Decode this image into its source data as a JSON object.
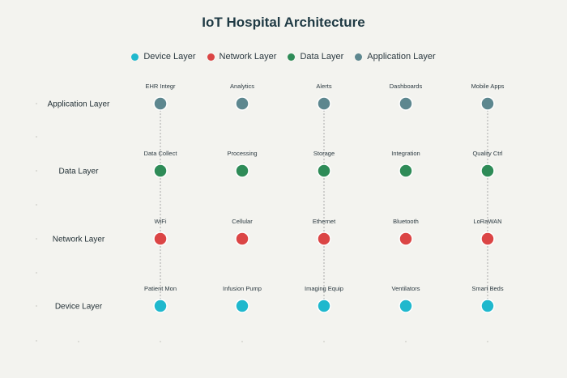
{
  "title": "IoT Hospital Architecture",
  "colors": {
    "device": "#1fb8cd",
    "network": "#db4545",
    "data": "#2e8b57",
    "application": "#5d878f",
    "connector": "#a8a8a8"
  },
  "legend": [
    {
      "label": "Device Layer",
      "color_key": "device"
    },
    {
      "label": "Network Layer",
      "color_key": "network"
    },
    {
      "label": "Data Layer",
      "color_key": "data"
    },
    {
      "label": "Application Layer",
      "color_key": "application"
    }
  ],
  "layers": [
    {
      "name": "Application Layer",
      "color_key": "application",
      "nodes": [
        "EHR Integr",
        "Analytics",
        "Alerts",
        "Dashboards",
        "Mobile Apps"
      ]
    },
    {
      "name": "Data Layer",
      "color_key": "data",
      "nodes": [
        "Data Collect",
        "Processing",
        "Storage",
        "Integration",
        "Quality Ctrl"
      ]
    },
    {
      "name": "Network Layer",
      "color_key": "network",
      "nodes": [
        "WiFi",
        "Cellular",
        "Ethernet",
        "Bluetooth",
        "LoRaWAN"
      ]
    },
    {
      "name": "Device Layer",
      "color_key": "device",
      "nodes": [
        "Patient Mon",
        "Infusion Pump",
        "Imaging Equip",
        "Ventilators",
        "Smart Beds"
      ]
    }
  ],
  "connected_columns": [
    0,
    2,
    4
  ]
}
